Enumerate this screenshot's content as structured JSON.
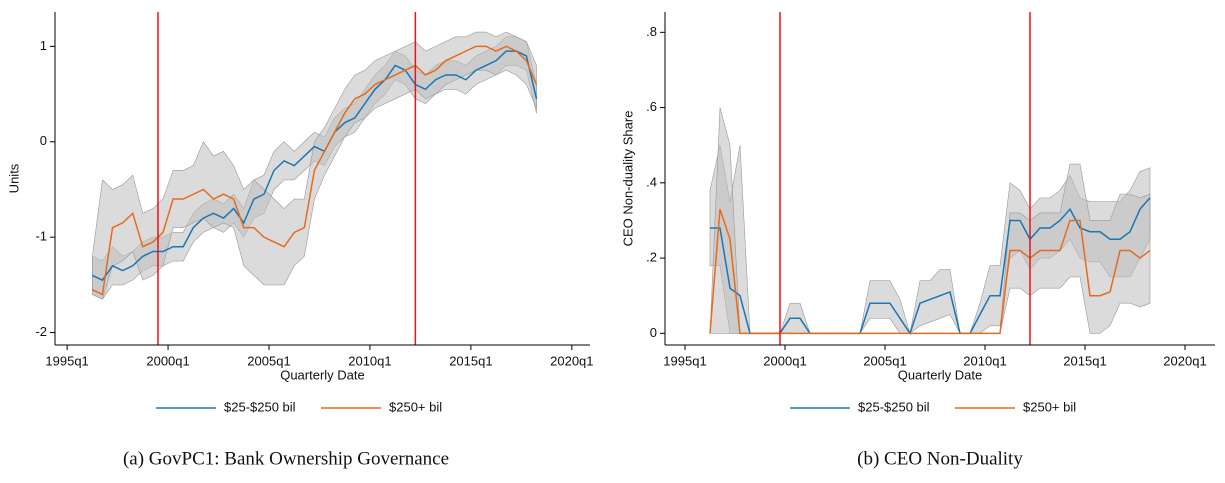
{
  "chart_data": [
    {
      "type": "line",
      "caption": "(a) GovPC1: Bank Ownership Governance",
      "y_label": "Units",
      "x_label": "Quarterly Date",
      "x": [
        "1996q2",
        "1996q4",
        "1997q2",
        "1997q4",
        "1998q2",
        "1998q4",
        "1999q2",
        "1999q4",
        "2000q2",
        "2000q4",
        "2001q2",
        "2001q4",
        "2002q2",
        "2002q4",
        "2003q2",
        "2003q4",
        "2004q2",
        "2004q4",
        "2005q2",
        "2005q4",
        "2006q2",
        "2006q4",
        "2007q2",
        "2007q4",
        "2008q2",
        "2008q4",
        "2009q2",
        "2009q4",
        "2010q2",
        "2010q4",
        "2011q2",
        "2011q4",
        "2012q2",
        "2012q4",
        "2013q2",
        "2013q4",
        "2014q2",
        "2014q4",
        "2015q2",
        "2015q4",
        "2016q2",
        "2016q4",
        "2017q2",
        "2017q4",
        "2018q2"
      ],
      "series": [
        {
          "name": "$25-$250 bil",
          "color": "#1a76b4",
          "values": [
            -1.4,
            -1.45,
            -1.3,
            -1.35,
            -1.3,
            -1.2,
            -1.15,
            -1.15,
            -1.1,
            -1.1,
            -0.9,
            -0.8,
            -0.75,
            -0.8,
            -0.7,
            -0.85,
            -0.6,
            -0.55,
            -0.3,
            -0.2,
            -0.25,
            -0.15,
            -0.05,
            -0.1,
            0.1,
            0.2,
            0.25,
            0.4,
            0.55,
            0.65,
            0.8,
            0.75,
            0.6,
            0.55,
            0.65,
            0.7,
            0.7,
            0.65,
            0.75,
            0.8,
            0.85,
            0.95,
            0.95,
            0.9,
            0.45
          ],
          "lower": [
            -1.6,
            -1.65,
            -1.5,
            -1.5,
            -1.45,
            -1.35,
            -1.3,
            -1.3,
            -1.25,
            -1.25,
            -1.05,
            -0.95,
            -0.9,
            -0.95,
            -0.85,
            -1.0,
            -0.8,
            -0.75,
            -0.5,
            -0.4,
            -0.4,
            -0.3,
            -0.2,
            -0.25,
            -0.05,
            0.05,
            0.1,
            0.25,
            0.4,
            0.5,
            0.65,
            0.6,
            0.45,
            0.4,
            0.5,
            0.55,
            0.55,
            0.5,
            0.6,
            0.65,
            0.7,
            0.8,
            0.8,
            0.75,
            0.3
          ],
          "upper": [
            -1.2,
            -1.25,
            -1.1,
            -1.2,
            -1.15,
            -1.05,
            -1.0,
            -1.0,
            -0.95,
            -0.95,
            -0.75,
            -0.65,
            -0.6,
            -0.65,
            -0.55,
            -0.7,
            -0.4,
            -0.35,
            -0.1,
            0.0,
            -0.1,
            0.0,
            0.1,
            0.05,
            0.25,
            0.35,
            0.4,
            0.55,
            0.7,
            0.8,
            0.95,
            0.9,
            0.75,
            0.7,
            0.8,
            0.85,
            0.85,
            0.8,
            0.9,
            0.95,
            1.0,
            1.1,
            1.1,
            1.05,
            0.6
          ]
        },
        {
          "name": "$250+ bil",
          "color": "#e46c1d",
          "values": [
            -1.55,
            -1.6,
            -0.9,
            -0.85,
            -0.75,
            -1.1,
            -1.05,
            -0.95,
            -0.6,
            -0.6,
            -0.55,
            -0.5,
            -0.6,
            -0.55,
            -0.6,
            -0.9,
            -0.9,
            -1.0,
            -1.05,
            -1.1,
            -0.95,
            -0.9,
            -0.3,
            -0.1,
            0.1,
            0.3,
            0.45,
            0.5,
            0.6,
            0.65,
            0.7,
            0.75,
            0.8,
            0.7,
            0.75,
            0.85,
            0.9,
            0.95,
            1.0,
            1.0,
            0.95,
            1.0,
            0.95,
            0.85,
            0.6
          ],
          "lower": [
            -1.6,
            -1.65,
            -1.3,
            -1.25,
            -1.15,
            -1.45,
            -1.4,
            -1.3,
            -0.9,
            -0.9,
            -0.85,
            -0.8,
            -0.9,
            -0.85,
            -0.9,
            -1.3,
            -1.4,
            -1.5,
            -1.5,
            -1.5,
            -1.3,
            -1.2,
            -0.6,
            -0.35,
            -0.15,
            0.05,
            0.2,
            0.25,
            0.35,
            0.4,
            0.45,
            0.5,
            0.55,
            0.45,
            0.5,
            0.6,
            0.65,
            0.7,
            0.75,
            0.75,
            0.7,
            0.75,
            0.7,
            0.6,
            0.35
          ],
          "upper": [
            -1.2,
            -0.4,
            -0.5,
            -0.45,
            -0.35,
            -0.75,
            -0.7,
            -0.6,
            -0.3,
            -0.3,
            -0.25,
            0.0,
            -0.15,
            -0.1,
            -0.25,
            -0.5,
            -0.4,
            -0.5,
            -0.6,
            -0.7,
            -0.6,
            -0.6,
            0.0,
            0.15,
            0.35,
            0.55,
            0.7,
            0.75,
            0.85,
            0.9,
            0.95,
            1.0,
            1.05,
            0.95,
            1.0,
            1.05,
            1.1,
            1.1,
            1.15,
            1.15,
            1.1,
            1.15,
            1.1,
            1.05,
            0.8
          ]
        }
      ],
      "band_color": "#bdbdbd",
      "vlines": [
        "1999q3",
        "2012q2"
      ],
      "vline_color": "#e3141c",
      "xlim": [
        1994.4,
        2020.9
      ],
      "xticks": [
        {
          "value": 1995,
          "label": "1995q1"
        },
        {
          "value": 2000,
          "label": "2000q1"
        },
        {
          "value": 2005,
          "label": "2005q1"
        },
        {
          "value": 2010,
          "label": "2010q1"
        },
        {
          "value": 2015,
          "label": "2015q1"
        },
        {
          "value": 2020,
          "label": "2020q1"
        }
      ],
      "ylim": [
        -2.13,
        1.36
      ],
      "yticks": [
        -2,
        -1,
        0,
        1
      ],
      "grid": false
    },
    {
      "type": "line",
      "caption": "(b) CEO Non-Duality",
      "y_label": "CEO Non-duality Share",
      "x_label": "Quarterly Date",
      "x": [
        "1996q2",
        "1996q4",
        "1997q2",
        "1997q4",
        "1998q2",
        "1998q4",
        "1999q2",
        "1999q4",
        "2000q2",
        "2000q4",
        "2001q2",
        "2001q4",
        "2002q2",
        "2002q4",
        "2003q2",
        "2003q4",
        "2004q2",
        "2004q4",
        "2005q2",
        "2005q4",
        "2006q2",
        "2006q4",
        "2007q2",
        "2007q4",
        "2008q2",
        "2008q4",
        "2009q2",
        "2009q4",
        "2010q2",
        "2010q4",
        "2011q2",
        "2011q4",
        "2012q2",
        "2012q4",
        "2013q2",
        "2013q4",
        "2014q2",
        "2014q4",
        "2015q2",
        "2015q4",
        "2016q2",
        "2016q4",
        "2017q2",
        "2017q4",
        "2018q2"
      ],
      "series": [
        {
          "name": "$25-$250 bil",
          "color": "#1a76b4",
          "values": [
            0.28,
            0.28,
            0.12,
            0.1,
            0,
            0,
            0,
            0,
            0.04,
            0.04,
            0,
            0,
            0,
            0,
            0,
            0,
            0.08,
            0.08,
            0.08,
            0.04,
            0,
            0.08,
            0.09,
            0.1,
            0.11,
            0,
            0,
            0.05,
            0.1,
            0.1,
            0.3,
            0.3,
            0.25,
            0.28,
            0.28,
            0.3,
            0.33,
            0.28,
            0.27,
            0.27,
            0.25,
            0.25,
            0.27,
            0.33,
            0.36
          ],
          "lower": [
            0.18,
            0.18,
            0,
            0,
            0,
            0,
            0,
            0,
            0,
            0,
            0,
            0,
            0,
            0,
            0,
            0,
            0.04,
            0.04,
            0.04,
            0,
            0,
            0.02,
            0.03,
            0.04,
            0.05,
            0,
            0,
            0,
            0.02,
            0.02,
            0.2,
            0.22,
            0.17,
            0.2,
            0.2,
            0.22,
            0.25,
            0.2,
            0.19,
            0.19,
            0.15,
            0.15,
            0.15,
            0.2,
            0.25
          ],
          "upper": [
            0.38,
            0.5,
            0.35,
            0.5,
            0,
            0,
            0,
            0,
            0.08,
            0.08,
            0,
            0,
            0,
            0,
            0,
            0,
            0.14,
            0.14,
            0.14,
            0.09,
            0,
            0.14,
            0.14,
            0.17,
            0.17,
            0,
            0,
            0.08,
            0.18,
            0.18,
            0.4,
            0.38,
            0.33,
            0.36,
            0.36,
            0.38,
            0.42,
            0.36,
            0.35,
            0.35,
            0.35,
            0.35,
            0.38,
            0.43,
            0.44
          ]
        },
        {
          "name": "$250+ bil",
          "color": "#e46c1d",
          "values": [
            0,
            0.33,
            0.25,
            0,
            0,
            0,
            0,
            0,
            0,
            0,
            0,
            0,
            0,
            0,
            0,
            0,
            0,
            0,
            0,
            0,
            0,
            0,
            0,
            0,
            0,
            0,
            0,
            0,
            0,
            0,
            0.22,
            0.22,
            0.2,
            0.22,
            0.22,
            0.22,
            0.3,
            0.3,
            0.1,
            0.1,
            0.11,
            0.22,
            0.22,
            0.2,
            0.22
          ],
          "lower": [
            0,
            0,
            0,
            0,
            0,
            0,
            0,
            0,
            0,
            0,
            0,
            0,
            0,
            0,
            0,
            0,
            0,
            0,
            0,
            0,
            0,
            0,
            0,
            0,
            0,
            0,
            0,
            0,
            0,
            0,
            0.12,
            0.12,
            0.1,
            0.12,
            0.12,
            0.12,
            0.15,
            0.15,
            0,
            0,
            0.02,
            0.08,
            0.08,
            0.07,
            0.08
          ],
          "upper": [
            0,
            0.6,
            0.5,
            0,
            0,
            0,
            0,
            0,
            0,
            0,
            0,
            0,
            0,
            0,
            0,
            0,
            0,
            0,
            0,
            0,
            0,
            0,
            0,
            0,
            0,
            0,
            0,
            0,
            0,
            0,
            0.32,
            0.32,
            0.3,
            0.32,
            0.32,
            0.32,
            0.45,
            0.45,
            0.3,
            0.3,
            0.3,
            0.37,
            0.37,
            0.36,
            0.37
          ]
        }
      ],
      "band_color": "#bdbdbd",
      "vlines": [
        "1999q4",
        "2012q2"
      ],
      "vline_color": "#e3141c",
      "xlim": [
        1994.0,
        2021.5
      ],
      "xticks": [
        {
          "value": 1995,
          "label": "1995q1"
        },
        {
          "value": 2000,
          "label": "2000q1"
        },
        {
          "value": 2005,
          "label": "2005q1"
        },
        {
          "value": 2010,
          "label": "2010q1"
        },
        {
          "value": 2015,
          "label": "2015q1"
        },
        {
          "value": 2020,
          "label": "2020q1"
        }
      ],
      "ylim": [
        -0.031,
        0.854
      ],
      "yticks": [
        0,
        {
          "value": 0.2,
          "label": ".2"
        },
        {
          "value": 0.4,
          "label": ".4"
        },
        {
          "value": 0.6,
          "label": ".6"
        },
        {
          "value": 0.8,
          "label": ".8"
        }
      ],
      "grid": false
    }
  ]
}
